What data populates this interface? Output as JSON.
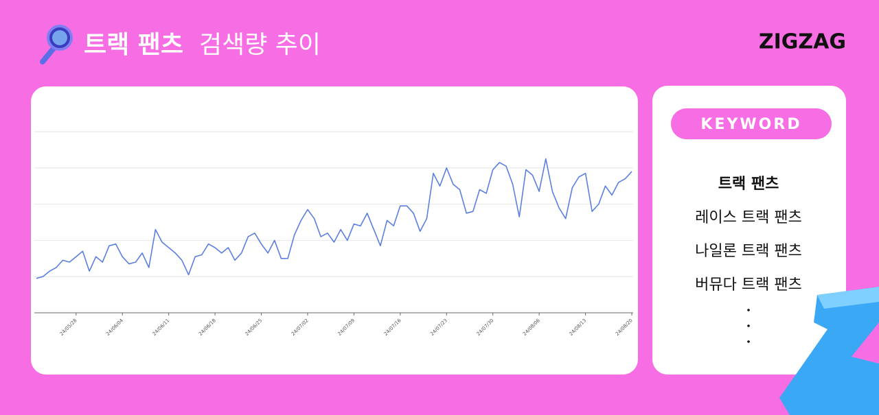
{
  "header": {
    "title_bold": "트랙 팬츠",
    "title_rest": "검색량 추이",
    "logo": "ZIGZAG"
  },
  "chart_data": {
    "type": "line",
    "color": "#5b7fe0",
    "grid": true,
    "ylim": [
      0,
      100
    ],
    "yticks": [
      0,
      20,
      40,
      60,
      80,
      100
    ],
    "categories": [
      null,
      null,
      null,
      null,
      null,
      null,
      "24/05/28",
      null,
      null,
      null,
      null,
      null,
      null,
      "24/06/04",
      null,
      null,
      null,
      null,
      null,
      null,
      "24/06/11",
      null,
      null,
      null,
      null,
      null,
      null,
      "24/06/18",
      null,
      null,
      null,
      null,
      null,
      null,
      "24/06/25",
      null,
      null,
      null,
      null,
      null,
      null,
      "24/07/02",
      null,
      null,
      null,
      null,
      null,
      null,
      "24/07/09",
      null,
      null,
      null,
      null,
      null,
      null,
      "24/07/16",
      null,
      null,
      null,
      null,
      null,
      null,
      "24/07/23",
      null,
      null,
      null,
      null,
      null,
      null,
      "24/07/30",
      null,
      null,
      null,
      null,
      null,
      null,
      "24/08/06",
      null,
      null,
      null,
      null,
      null,
      null,
      "24/08/13",
      null,
      null,
      null,
      null,
      null,
      null,
      "24/08/20"
    ],
    "values": [
      19,
      20,
      23,
      25,
      29,
      28,
      31,
      34,
      23,
      31,
      28,
      37,
      38,
      31,
      27,
      28,
      33,
      25,
      46,
      39,
      36,
      33,
      29,
      21,
      31,
      32,
      38,
      36,
      33,
      36,
      29,
      33,
      42,
      44,
      38,
      33,
      40,
      30,
      30,
      43,
      51,
      57,
      52,
      42,
      44,
      39,
      46,
      40,
      49,
      48,
      55,
      46,
      37,
      51,
      48,
      59,
      59,
      55,
      45,
      52,
      77,
      70,
      80,
      71,
      68,
      55,
      56,
      68,
      66,
      79,
      83,
      81,
      71,
      53,
      79,
      76,
      67,
      85,
      67,
      58,
      52,
      69,
      75,
      77,
      56,
      60,
      70,
      65,
      72,
      74,
      78
    ]
  },
  "keywords": {
    "label": "KEYWORD",
    "items": [
      "트랙 팬츠",
      "레이스 트랙 팬츠",
      "나일론 트랙 팬츠",
      "버뮤다 트랙 팬츠"
    ]
  }
}
